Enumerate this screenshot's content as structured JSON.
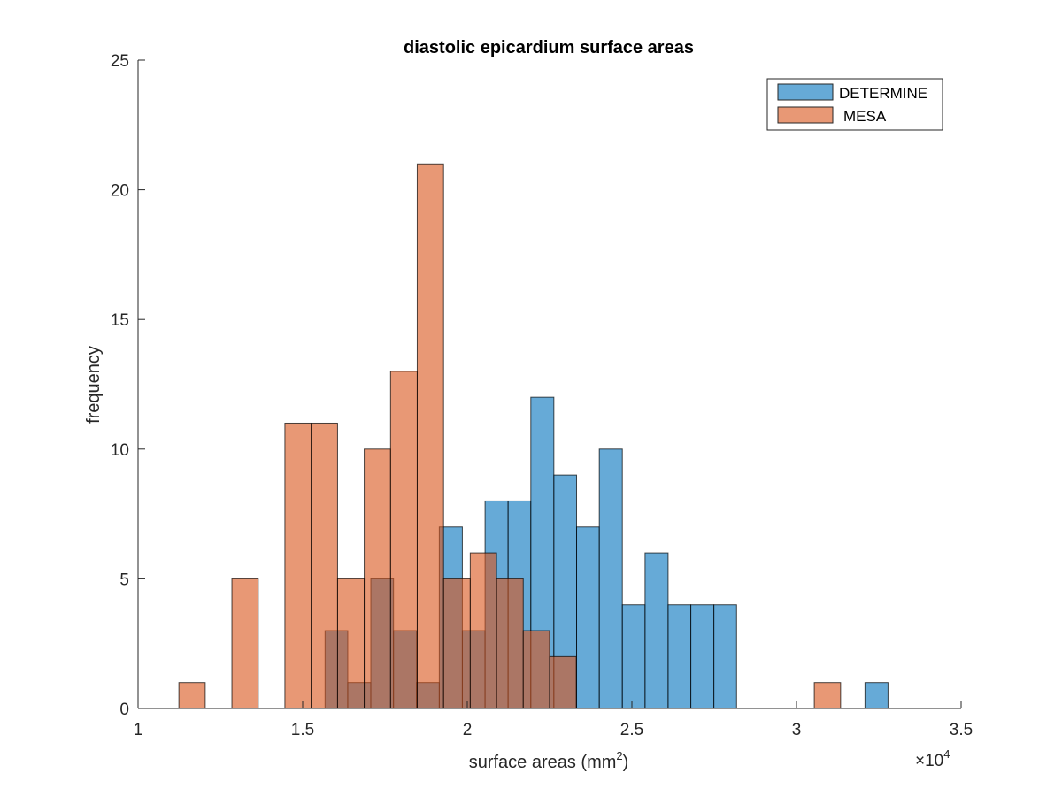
{
  "chart_data": {
    "type": "bar",
    "title": "diastolic epicardium surface areas",
    "xlabel": "surface areas (mm",
    "xlabel_sup": "2",
    "xlabel_close": ")",
    "ylabel": "frequency",
    "xlim": [
      1,
      3.5
    ],
    "ylim": [
      0,
      25
    ],
    "x_exponent": "×10",
    "x_exponent_sup": "4",
    "xticks": [
      1,
      1.5,
      2,
      2.5,
      3,
      3.5
    ],
    "yticks": [
      0,
      5,
      10,
      15,
      20,
      25
    ],
    "grid": false,
    "legend_position": "top-right",
    "series": [
      {
        "name": "DETERMINE",
        "color": "#0072BD",
        "bins": [
          {
            "x0": 1.568,
            "x1": 1.637,
            "y": 3
          },
          {
            "x0": 1.637,
            "x1": 1.707,
            "y": 1
          },
          {
            "x0": 1.707,
            "x1": 1.776,
            "y": 5
          },
          {
            "x0": 1.776,
            "x1": 1.846,
            "y": 3
          },
          {
            "x0": 1.846,
            "x1": 1.915,
            "y": 1
          },
          {
            "x0": 1.915,
            "x1": 1.985,
            "y": 7
          },
          {
            "x0": 1.985,
            "x1": 2.054,
            "y": 3
          },
          {
            "x0": 2.054,
            "x1": 2.124,
            "y": 8
          },
          {
            "x0": 2.124,
            "x1": 2.193,
            "y": 8
          },
          {
            "x0": 2.193,
            "x1": 2.263,
            "y": 12
          },
          {
            "x0": 2.263,
            "x1": 2.332,
            "y": 9
          },
          {
            "x0": 2.332,
            "x1": 2.401,
            "y": 7
          },
          {
            "x0": 2.401,
            "x1": 2.471,
            "y": 10
          },
          {
            "x0": 2.471,
            "x1": 2.54,
            "y": 4
          },
          {
            "x0": 2.54,
            "x1": 2.61,
            "y": 6
          },
          {
            "x0": 2.61,
            "x1": 2.679,
            "y": 4
          },
          {
            "x0": 2.679,
            "x1": 2.749,
            "y": 4
          },
          {
            "x0": 2.749,
            "x1": 2.818,
            "y": 4
          },
          {
            "x0": 3.208,
            "x1": 3.278,
            "y": 1
          }
        ]
      },
      {
        "name": "MESA",
        "color": "#D95319",
        "bins": [
          {
            "x0": 1.124,
            "x1": 1.204,
            "y": 1
          },
          {
            "x0": 1.285,
            "x1": 1.365,
            "y": 5
          },
          {
            "x0": 1.446,
            "x1": 1.526,
            "y": 11
          },
          {
            "x0": 1.526,
            "x1": 1.606,
            "y": 11
          },
          {
            "x0": 1.606,
            "x1": 1.687,
            "y": 5
          },
          {
            "x0": 1.687,
            "x1": 1.767,
            "y": 10
          },
          {
            "x0": 1.767,
            "x1": 1.848,
            "y": 13
          },
          {
            "x0": 1.848,
            "x1": 1.928,
            "y": 21
          },
          {
            "x0": 1.928,
            "x1": 2.009,
            "y": 5
          },
          {
            "x0": 2.009,
            "x1": 2.089,
            "y": 6
          },
          {
            "x0": 2.089,
            "x1": 2.17,
            "y": 5
          },
          {
            "x0": 2.17,
            "x1": 2.25,
            "y": 3
          },
          {
            "x0": 2.25,
            "x1": 2.331,
            "y": 2
          },
          {
            "x0": 3.054,
            "x1": 3.134,
            "y": 1
          }
        ]
      }
    ]
  }
}
